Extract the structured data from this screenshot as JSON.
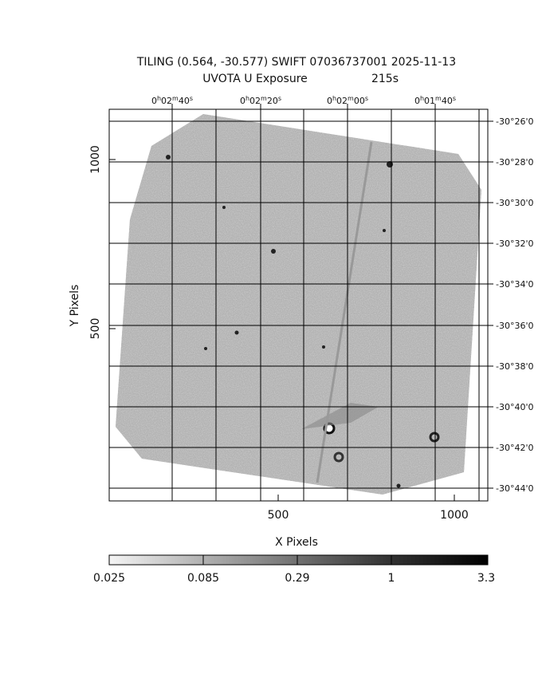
{
  "header": {
    "title": "TILING (0.564, -30.577) SWIFT 07036737001 2025-11-13",
    "subtitle": "UVOTA U Exposure",
    "exposure": "215s"
  },
  "x_axis": {
    "label": "X Pixels",
    "ticks": [
      "500",
      "1000"
    ]
  },
  "y_axis": {
    "label": "Y Pixels",
    "ticks": [
      "1000",
      "500"
    ]
  },
  "ra_ticks": [
    [
      "0",
      "h",
      "02",
      "m",
      "40",
      "s"
    ],
    [
      "0",
      "h",
      "02",
      "m",
      "20",
      "s"
    ],
    [
      "0",
      "h",
      "02",
      "m",
      "00",
      "s"
    ],
    [
      "0",
      "h",
      "01",
      "m",
      "40",
      "s"
    ]
  ],
  "dec_ticks": [
    "-30°26'0",
    "-30°28'0",
    "-30°30'0",
    "-30°32'0",
    "-30°34'0",
    "-30°36'0",
    "-30°38'0",
    "-30°40'0",
    "-30°42'0",
    "-30°44'0"
  ],
  "colorbar": {
    "ticks": [
      "0.025",
      "0.085",
      "0.29",
      "1",
      "3.3"
    ]
  }
}
